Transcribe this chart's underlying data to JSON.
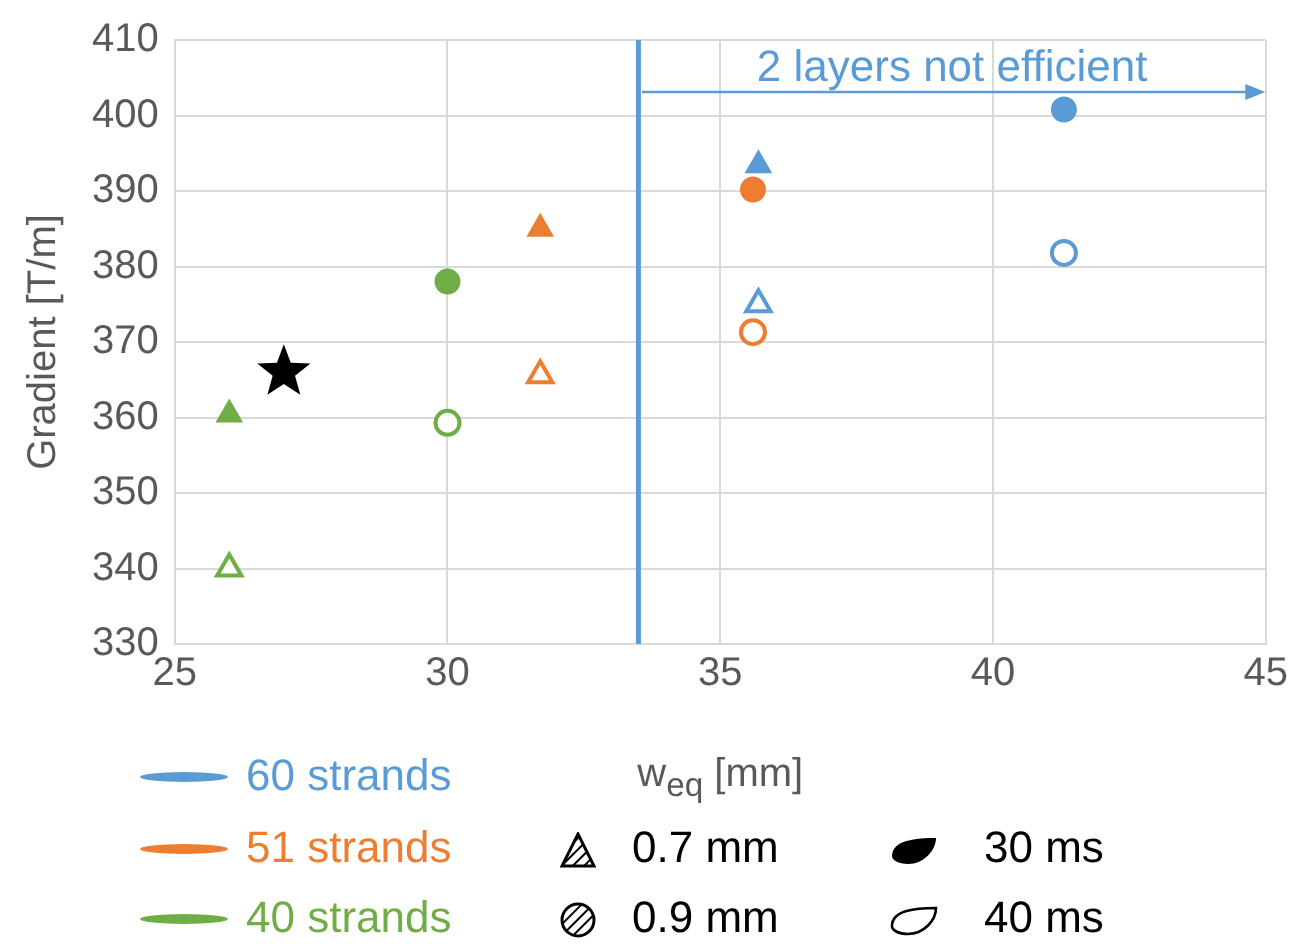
{
  "chart_data": {
    "type": "scatter",
    "xlabel": "w$_{eq}$ [mm]",
    "ylabel": "Gradient [T/m]",
    "xlim": [
      25,
      45
    ],
    "xticks": [
      25,
      30,
      35,
      40,
      45
    ],
    "ylim": [
      330,
      410
    ],
    "yticks": [
      330,
      340,
      350,
      360,
      370,
      380,
      390,
      400,
      410
    ],
    "grid": true,
    "legend": "bottom",
    "series": [
      {
        "name": "60 strands",
        "color": "#5b9bd5",
        "x": [
          35.7
        ],
        "values": [
          393.4
        ],
        "marker": "triangle"
      },
      {
        "color": "#5b9bd5",
        "colors": [
          "#ffffff"
        ],
        "x": [
          35.7
        ],
        "values": [
          375
        ],
        "marker": "triangle"
      },
      {
        "color": "#5b9bd5",
        "x": [
          41.3
        ],
        "values": [
          400.8
        ],
        "marker": "circle"
      },
      {
        "color": "#5b9bd5",
        "colors": [
          "#ffffff"
        ],
        "x": [
          41.3
        ],
        "values": [
          381.8
        ],
        "marker": "circle"
      },
      {
        "name": "51 strands",
        "color": "#ed7d31",
        "x": [
          31.7
        ],
        "values": [
          385
        ],
        "marker": "triangle"
      },
      {
        "color": "#ed7d31",
        "colors": [
          "#ffffff"
        ],
        "x": [
          31.7
        ],
        "values": [
          365.6
        ],
        "marker": "triangle"
      },
      {
        "color": "#ed7d31",
        "x": [
          35.6
        ],
        "values": [
          390.2
        ],
        "marker": "circle"
      },
      {
        "color": "#ed7d31",
        "colors": [
          "#ffffff"
        ],
        "x": [
          35.6
        ],
        "values": [
          371.3
        ],
        "marker": "circle"
      },
      {
        "name": "40 strands",
        "color": "#70ad47",
        "x": [
          26
        ],
        "values": [
          360.4
        ],
        "marker": "triangle"
      },
      {
        "color": "#70ad47",
        "colors": [
          "#ffffff"
        ],
        "x": [
          26
        ],
        "values": [
          340
        ],
        "marker": "triangle"
      },
      {
        "color": "#70ad47",
        "x": [
          30
        ],
        "values": [
          378
        ],
        "marker": "circle"
      },
      {
        "color": "#70ad47",
        "colors": [
          "#ffffff"
        ],
        "x": [
          30
        ],
        "values": [
          359.3
        ],
        "marker": "circle"
      },
      {
        "color": "#000000",
        "x": [
          27
        ],
        "values": [
          366
        ],
        "marker": "star"
      }
    ],
    "ref_lines": [
      {
        "axis": "x",
        "value": 33.5,
        "label": null,
        "color": "#5b9bd5"
      }
    ],
    "annotations": [
      {
        "text": "2 layers not efficient",
        "x": 33.5,
        "y": 403
      },
      "0.7 mm",
      "0.9 mm",
      "30 ms",
      "40 ms"
    ]
  }
}
